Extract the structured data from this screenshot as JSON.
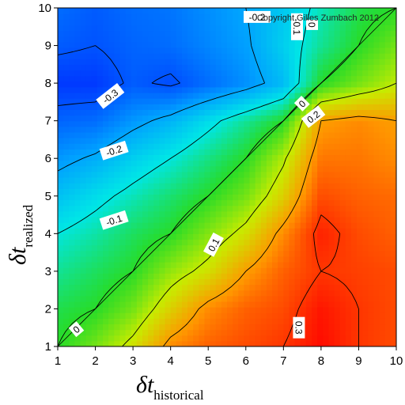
{
  "chart_data": {
    "type": "heatmap",
    "title": "",
    "copyright": "Copyright Gilles Zumbach 2012",
    "xlabel": {
      "symbol": "δt",
      "sub": "historical"
    },
    "ylabel": {
      "symbol": "δt",
      "sub": "realized"
    },
    "xlim": [
      1,
      10
    ],
    "ylim": [
      1,
      10
    ],
    "xticks": [
      "1",
      "2",
      "3",
      "4",
      "5",
      "6",
      "7",
      "8",
      "9",
      "10"
    ],
    "yticks": [
      "1",
      "2",
      "3",
      "4",
      "5",
      "6",
      "7",
      "8",
      "9",
      "10"
    ],
    "zlim": [
      -0.35,
      0.35
    ],
    "grid": false,
    "x": [
      1,
      2,
      3,
      4,
      5,
      6,
      7,
      8,
      9,
      10
    ],
    "y": [
      1,
      2,
      3,
      4,
      5,
      6,
      7,
      8,
      9,
      10
    ],
    "z": [
      [
        0.0,
        0.05,
        0.12,
        0.22,
        0.26,
        0.28,
        0.3,
        0.34,
        0.3,
        0.28
      ],
      [
        -0.02,
        0.0,
        0.05,
        0.14,
        0.22,
        0.26,
        0.28,
        0.33,
        0.3,
        0.28
      ],
      [
        -0.06,
        -0.03,
        0.0,
        0.07,
        0.12,
        0.2,
        0.26,
        0.3,
        0.29,
        0.28
      ],
      [
        -0.1,
        -0.07,
        -0.03,
        0.0,
        0.06,
        0.12,
        0.22,
        0.32,
        0.28,
        0.26
      ],
      [
        -0.16,
        -0.12,
        -0.08,
        -0.04,
        0.0,
        0.05,
        0.14,
        0.28,
        0.26,
        0.25
      ],
      [
        -0.22,
        -0.19,
        -0.14,
        -0.1,
        -0.05,
        0.0,
        0.09,
        0.24,
        0.24,
        0.22
      ],
      [
        -0.28,
        -0.27,
        -0.22,
        -0.18,
        -0.12,
        -0.06,
        0.0,
        0.2,
        0.22,
        0.2
      ],
      [
        -0.33,
        -0.33,
        -0.29,
        -0.31,
        -0.27,
        -0.23,
        -0.17,
        0.0,
        0.05,
        0.1
      ],
      [
        -0.29,
        -0.3,
        -0.28,
        -0.27,
        -0.24,
        -0.21,
        -0.14,
        -0.06,
        0.0,
        0.05
      ],
      [
        -0.27,
        -0.29,
        -0.27,
        -0.26,
        -0.23,
        -0.2,
        -0.15,
        -0.08,
        -0.02,
        0.0
      ]
    ],
    "contour_labels": [
      {
        "text": "-0.3",
        "x": 2.4,
        "y": 7.65,
        "angle": -38
      },
      {
        "text": "-0.2",
        "x": 2.5,
        "y": 6.2,
        "angle": -18
      },
      {
        "text": "-0.1",
        "x": 2.5,
        "y": 4.35,
        "angle": -18
      },
      {
        "text": "0",
        "x": 1.5,
        "y": 1.45,
        "angle": -40
      },
      {
        "text": "0.1",
        "x": 5.15,
        "y": 3.7,
        "angle": -62
      },
      {
        "text": "0.2",
        "x": 7.8,
        "y": 7.1,
        "angle": -38
      },
      {
        "text": "0",
        "x": 7.5,
        "y": 7.45,
        "angle": -45
      },
      {
        "text": "0.3",
        "x": 7.4,
        "y": 1.5,
        "angle": 90
      },
      {
        "text": "-0.2",
        "x": 6.3,
        "y": 9.75,
        "angle": 0
      },
      {
        "text": "-0.1",
        "x": 7.35,
        "y": 9.5,
        "angle": 90
      },
      {
        "text": "0",
        "x": 7.75,
        "y": 9.55,
        "angle": 90
      }
    ]
  }
}
